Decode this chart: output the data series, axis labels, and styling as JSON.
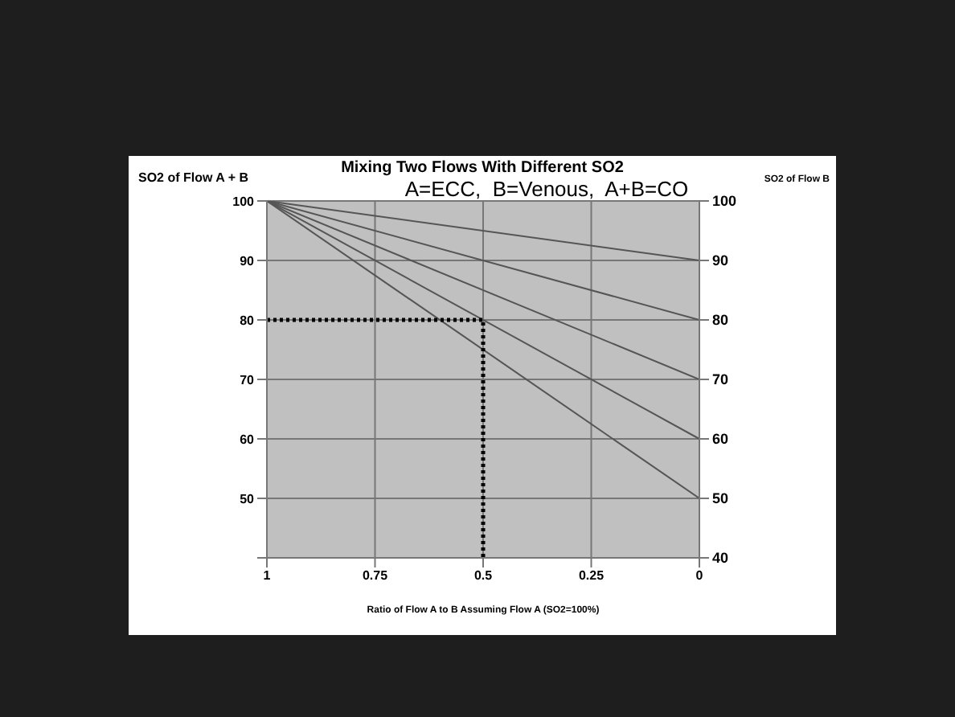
{
  "chart_data": {
    "type": "line",
    "title": "Mixing Two Flows With Different SO2",
    "subtitle": "A=ECC,  B=Venous,  A+B=CO",
    "xlabel": "Ratio of Flow A to B Assuming Flow A (SO2=100%)",
    "ylabel": "SO2 of Flow A + B",
    "y2label": "SO2 of Flow B",
    "xlim": [
      1,
      0
    ],
    "xticks": [
      1,
      0.75,
      0.5,
      0.25,
      0
    ],
    "ylim": [
      40,
      100
    ],
    "yticks": [
      {
        "value": 40,
        "label": null
      },
      50,
      60,
      70,
      80,
      90,
      100
    ],
    "y2lim": [
      40,
      100
    ],
    "y2ticks": [
      40,
      50,
      60,
      70,
      80,
      90,
      100
    ],
    "grid": true,
    "legend": false,
    "marker": "none",
    "line_style": "solid",
    "series": [
      {
        "color": "#555555",
        "x": [
          1,
          0
        ],
        "values": [
          100,
          90
        ]
      },
      {
        "color": "#555555",
        "x": [
          1,
          0
        ],
        "values": [
          100,
          80
        ]
      },
      {
        "color": "#555555",
        "x": [
          1,
          0
        ],
        "values": [
          100,
          70
        ]
      },
      {
        "color": "#555555",
        "x": [
          1,
          0
        ],
        "values": [
          100,
          60
        ]
      },
      {
        "color": "#555555",
        "x": [
          1,
          0
        ],
        "values": [
          100,
          50
        ]
      },
      {
        "color": "#000000",
        "x": [
          1,
          0.5,
          0.5
        ],
        "values": [
          80,
          80,
          40
        ],
        "line_style": "dotted"
      }
    ]
  }
}
